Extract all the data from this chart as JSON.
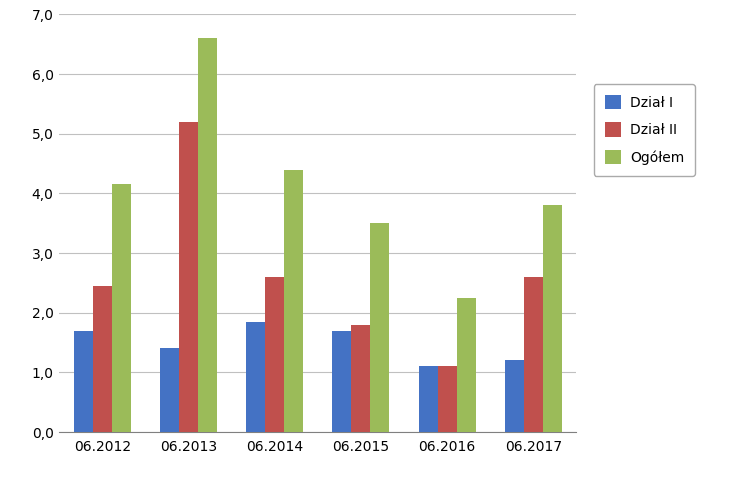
{
  "categories": [
    "06.2012",
    "06.2013",
    "06.2014",
    "06.2015",
    "06.2016",
    "06.2017"
  ],
  "series": [
    {
      "label": "Dział I",
      "values": [
        1.7,
        1.4,
        1.85,
        1.7,
        1.1,
        1.2
      ],
      "color": "#4472C4"
    },
    {
      "label": "Dział II",
      "values": [
        2.45,
        5.2,
        2.6,
        1.8,
        1.1,
        2.6
      ],
      "color": "#C0504D"
    },
    {
      "label": "Ogółem",
      "values": [
        4.15,
        6.6,
        4.4,
        3.5,
        2.25,
        3.8
      ],
      "color": "#9BBB59"
    }
  ],
  "ylim": [
    0.0,
    7.0
  ],
  "yticks": [
    0.0,
    1.0,
    2.0,
    3.0,
    4.0,
    5.0,
    6.0,
    7.0
  ],
  "ytick_labels": [
    "0,0",
    "1,0",
    "2,0",
    "3,0",
    "4,0",
    "5,0",
    "6,0",
    "7,0"
  ],
  "bar_width": 0.22,
  "background_color": "#FFFFFF",
  "plot_bg_color": "#FFFFFF",
  "grid_color": "#C0C0C0",
  "font_size": 10,
  "tick_font_size": 10
}
